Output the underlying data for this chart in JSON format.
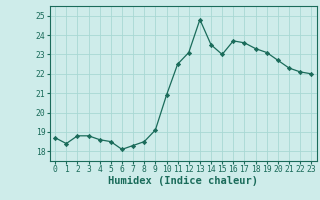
{
  "x": [
    0,
    1,
    2,
    3,
    4,
    5,
    6,
    7,
    8,
    9,
    10,
    11,
    12,
    13,
    14,
    15,
    16,
    17,
    18,
    19,
    20,
    21,
    22,
    23
  ],
  "y": [
    18.7,
    18.4,
    18.8,
    18.8,
    18.6,
    18.5,
    18.1,
    18.3,
    18.5,
    19.1,
    20.9,
    22.5,
    23.1,
    24.8,
    23.5,
    23.0,
    23.7,
    23.6,
    23.3,
    23.1,
    22.7,
    22.3,
    22.1,
    22.0
  ],
  "xlabel": "Humidex (Indice chaleur)",
  "ylim": [
    17.5,
    25.5
  ],
  "xlim": [
    -0.5,
    23.5
  ],
  "yticks": [
    18,
    19,
    20,
    21,
    22,
    23,
    24,
    25
  ],
  "xticks": [
    0,
    1,
    2,
    3,
    4,
    5,
    6,
    7,
    8,
    9,
    10,
    11,
    12,
    13,
    14,
    15,
    16,
    17,
    18,
    19,
    20,
    21,
    22,
    23
  ],
  "line_color": "#1a6b5a",
  "marker": "D",
  "marker_size": 2.2,
  "bg_color": "#ceecea",
  "grid_color": "#a8d8d4",
  "axes_color": "#1a6b5a",
  "tick_fontsize": 5.8,
  "xlabel_fontsize": 7.5
}
